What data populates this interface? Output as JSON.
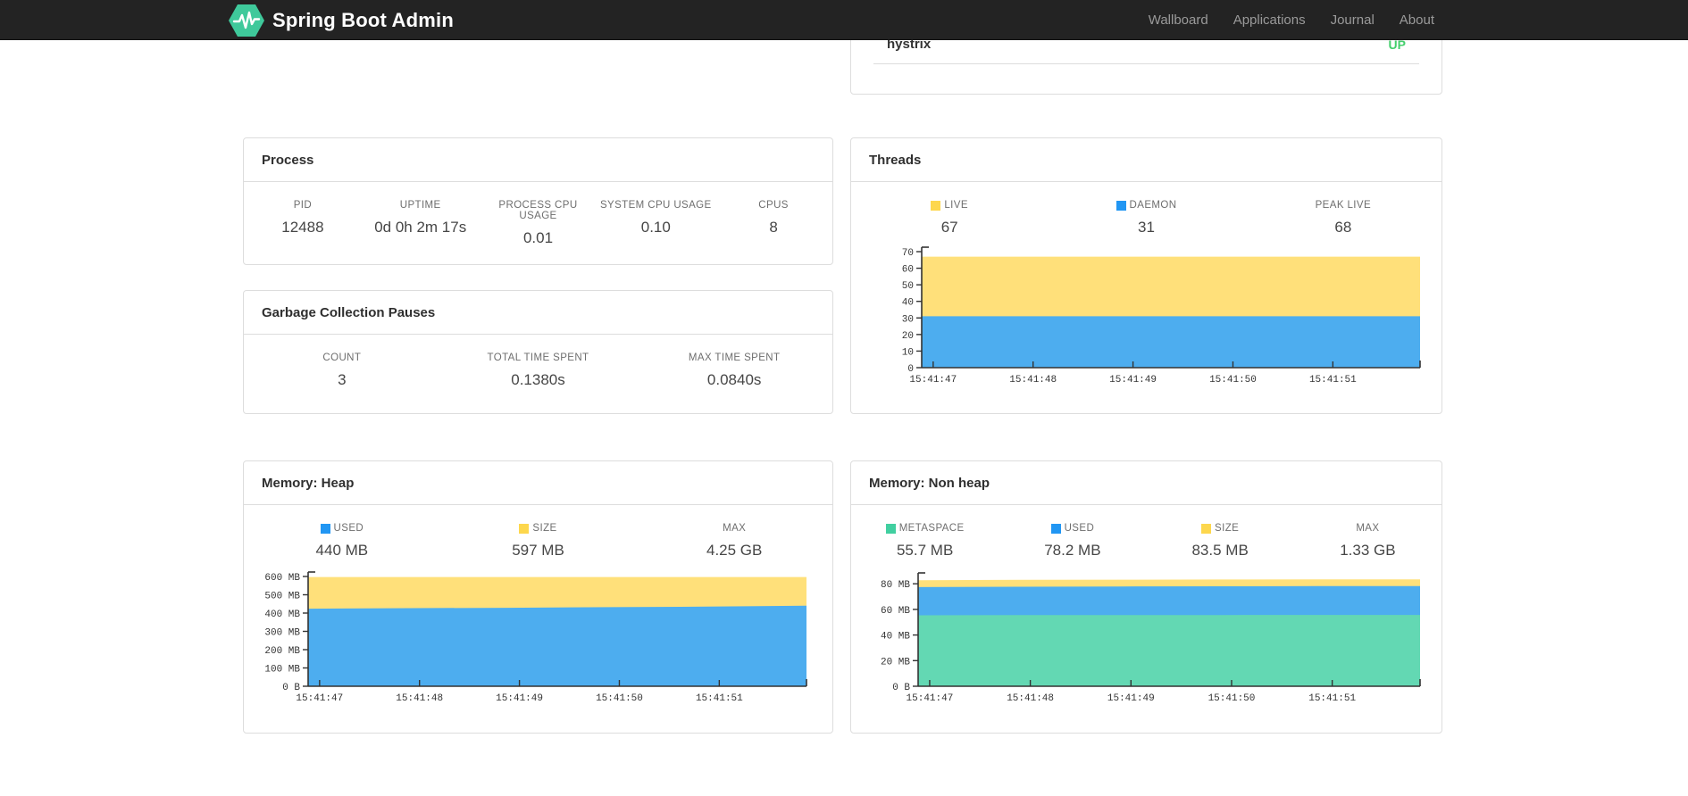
{
  "navbar": {
    "brand": "Spring Boot Admin",
    "items": [
      {
        "label": "Wallboard"
      },
      {
        "label": "Applications"
      },
      {
        "label": "Journal"
      },
      {
        "label": "About"
      }
    ]
  },
  "colors": {
    "status_up": "#45cf6d",
    "logo_green": "#3fc99b",
    "series_yellow": "#ffe07a",
    "series_blue": "#4dadef",
    "series_green": "#63d8b3",
    "swatch_yellow": "#fdd74d",
    "swatch_blue": "#2196f3",
    "swatch_green": "#41cfa0"
  },
  "application_row": {
    "name": "hystrix",
    "status": "UP"
  },
  "panels": {
    "process": {
      "title": "Process",
      "metrics": [
        {
          "label": "PID",
          "value": "12488"
        },
        {
          "label": "UPTIME",
          "value": "0d 0h 2m 17s"
        },
        {
          "label": "PROCESS CPU USAGE",
          "value": "0.01"
        },
        {
          "label": "SYSTEM CPU USAGE",
          "value": "0.10"
        },
        {
          "label": "CPUS",
          "value": "8"
        }
      ]
    },
    "gc": {
      "title": "Garbage Collection Pauses",
      "metrics": [
        {
          "label": "COUNT",
          "value": "3"
        },
        {
          "label": "TOTAL TIME SPENT",
          "value": "0.1380s"
        },
        {
          "label": "MAX TIME SPENT",
          "value": "0.0840s"
        }
      ]
    },
    "threads": {
      "title": "Threads",
      "metrics": [
        {
          "label": "LIVE",
          "value": "67",
          "swatch": "#fdd74d"
        },
        {
          "label": "DAEMON",
          "value": "31",
          "swatch": "#2196f3"
        },
        {
          "label": "PEAK LIVE",
          "value": "68"
        }
      ]
    },
    "heap": {
      "title": "Memory: Heap",
      "metrics": [
        {
          "label": "USED",
          "value": "440 MB",
          "swatch": "#2196f3"
        },
        {
          "label": "SIZE",
          "value": "597 MB",
          "swatch": "#fdd74d"
        },
        {
          "label": "MAX",
          "value": "4.25 GB"
        }
      ]
    },
    "nonheap": {
      "title": "Memory: Non heap",
      "metrics": [
        {
          "label": "METASPACE",
          "value": "55.7 MB",
          "swatch": "#41cfa0"
        },
        {
          "label": "USED",
          "value": "78.2 MB",
          "swatch": "#2196f3"
        },
        {
          "label": "SIZE",
          "value": "83.5 MB",
          "swatch": "#fdd74d"
        },
        {
          "label": "MAX",
          "value": "1.33 GB"
        }
      ]
    }
  },
  "chart_data": [
    {
      "id": "threads",
      "type": "area",
      "title": "Threads",
      "x_tick_labels": [
        "15:41:47",
        "15:41:48",
        "15:41:49",
        "15:41:50",
        "15:41:51"
      ],
      "y_tick_values": [
        0,
        10,
        20,
        30,
        40,
        50,
        60,
        70
      ],
      "y_tick_labels": [
        "0",
        "10",
        "20",
        "30",
        "40",
        "50",
        "60",
        "70"
      ],
      "ylim": [
        0,
        70
      ],
      "legend_position": "top",
      "grid": false,
      "series": [
        {
          "name": "LIVE",
          "color": "#ffe07a",
          "values": [
            67,
            67,
            67,
            67,
            67,
            67
          ]
        },
        {
          "name": "DAEMON",
          "color": "#4dadef",
          "values": [
            31,
            31,
            31,
            31,
            31,
            31
          ]
        }
      ]
    },
    {
      "id": "heap",
      "type": "area",
      "title": "Memory: Heap",
      "x_tick_labels": [
        "15:41:47",
        "15:41:48",
        "15:41:49",
        "15:41:50",
        "15:41:51"
      ],
      "y_tick_values": [
        0,
        100,
        200,
        300,
        400,
        500,
        600
      ],
      "y_tick_labels": [
        "0 B",
        "100 MB",
        "200 MB",
        "300 MB",
        "400 MB",
        "500 MB",
        "600 MB"
      ],
      "ylim": [
        0,
        600
      ],
      "legend_position": "top",
      "grid": false,
      "series": [
        {
          "name": "SIZE",
          "color": "#ffe07a",
          "values": [
            597,
            597,
            597,
            597,
            597,
            597
          ]
        },
        {
          "name": "USED",
          "color": "#4dadef",
          "values": [
            424,
            427,
            429,
            432,
            435,
            440
          ]
        }
      ]
    },
    {
      "id": "nonheap",
      "type": "area",
      "title": "Memory: Non heap",
      "x_tick_labels": [
        "15:41:47",
        "15:41:48",
        "15:41:49",
        "15:41:50",
        "15:41:51"
      ],
      "y_tick_values": [
        0,
        20,
        40,
        60,
        80
      ],
      "y_tick_labels": [
        "0 B",
        "20 MB",
        "40 MB",
        "60 MB",
        "80 MB"
      ],
      "ylim": [
        0,
        85
      ],
      "legend_position": "top",
      "grid": false,
      "series": [
        {
          "name": "SIZE",
          "color": "#ffe07a",
          "values": [
            82.8,
            83.1,
            83.2,
            83.3,
            83.5,
            83.5
          ]
        },
        {
          "name": "USED",
          "color": "#4dadef",
          "values": [
            77.4,
            77.7,
            77.9,
            78.0,
            78.2,
            78.2
          ]
        },
        {
          "name": "METASPACE",
          "color": "#63d8b3",
          "values": [
            55.4,
            55.5,
            55.6,
            55.6,
            55.7,
            55.7
          ]
        }
      ]
    }
  ]
}
